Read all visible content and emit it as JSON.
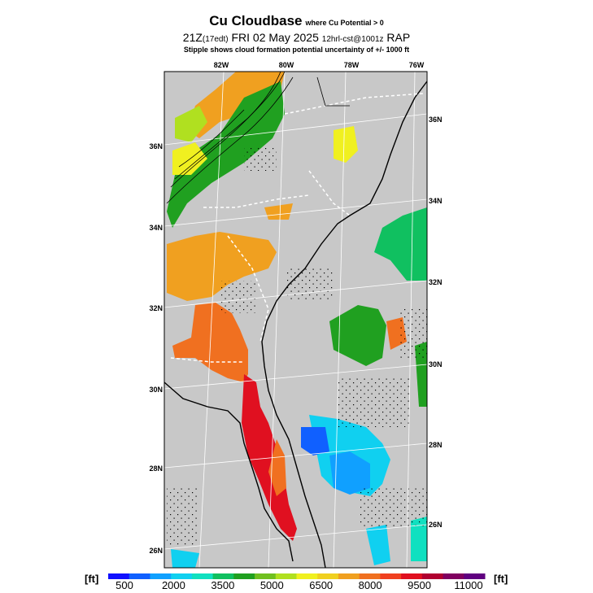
{
  "header": {
    "title": "Cu Cloudbase",
    "title_note": "where Cu Potential > 0",
    "line2_a": "21Z",
    "line2_b": "(17edt)",
    "line2_c": "FRI 02 May 2025",
    "line2_d": "12hrl-cst@1001z",
    "line2_e": "RAP",
    "stipple_note": "Stipple shows cloud formation potential uncertainty of +/- 1000 ft"
  },
  "axes": {
    "top_lon": [
      "82W",
      "80W",
      "78W",
      "76W"
    ],
    "left_lat": [
      "36N",
      "34N",
      "32N",
      "30N",
      "28N",
      "26N"
    ],
    "right_lat": [
      "36N",
      "34N",
      "32N",
      "30N",
      "28N",
      "26N"
    ]
  },
  "colorbar": {
    "unit_left": "[ft]",
    "unit_right": "[ft]",
    "labels": [
      "500",
      "2000",
      "3500",
      "5000",
      "6500",
      "8000",
      "9500",
      "11000"
    ],
    "colors": [
      "#1010ff",
      "#1060ff",
      "#10a0ff",
      "#10d0f0",
      "#10e0c0",
      "#10c060",
      "#20a020",
      "#70c020",
      "#b0e020",
      "#f0f020",
      "#f0d020",
      "#f0a020",
      "#f07020",
      "#f04020",
      "#e01020",
      "#b00030",
      "#800060",
      "#600080"
    ]
  },
  "regions": [
    {
      "name": "cloudbase-nc-mountains",
      "color": "#f0a020",
      "level_ft": 8000
    },
    {
      "name": "cloudbase-nc-piedmont",
      "color": "#20a020",
      "level_ft": 4500
    },
    {
      "name": "cloudbase-ga-sc",
      "color": "#f0a020",
      "level_ft": 8000
    },
    {
      "name": "cloudbase-ga-south",
      "color": "#f07020",
      "level_ft": 8700
    },
    {
      "name": "cloudbase-fl-peninsula",
      "color": "#e01020",
      "level_ft": 10000
    },
    {
      "name": "cloudbase-atlantic-offshore",
      "color": "#10c060",
      "level_ft": 4000
    },
    {
      "name": "cloudbase-fl-east-coast",
      "color": "#10d0f0",
      "level_ft": 2500
    },
    {
      "name": "cloudbase-fl-cape",
      "color": "#1060ff",
      "level_ft": 1500
    }
  ]
}
